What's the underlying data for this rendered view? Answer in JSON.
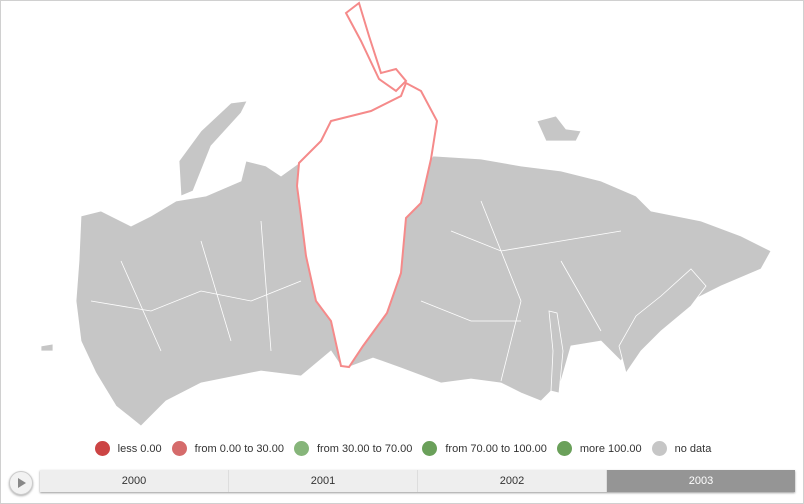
{
  "map": {
    "highlighted_region_outline": "#f58a8a",
    "region_fill": "#c6c6c6",
    "highlighted_fill": "#ffffff"
  },
  "legend": [
    {
      "label": "less 0.00",
      "color": "#cc4444"
    },
    {
      "label": "from 0.00 to 30.00",
      "color": "#d56b6b"
    },
    {
      "label": "from 30.00 to 70.00",
      "color": "#86b57a"
    },
    {
      "label": "from 70.00 to 100.00",
      "color": "#6aa05a"
    },
    {
      "label": "more 100.00",
      "color": "#6aa05a"
    },
    {
      "label": "no data",
      "color": "#c6c6c6"
    }
  ],
  "timeline": {
    "play_icon": "play-icon",
    "years": [
      "2000",
      "2001",
      "2002",
      "2003"
    ],
    "selected": "2003"
  }
}
